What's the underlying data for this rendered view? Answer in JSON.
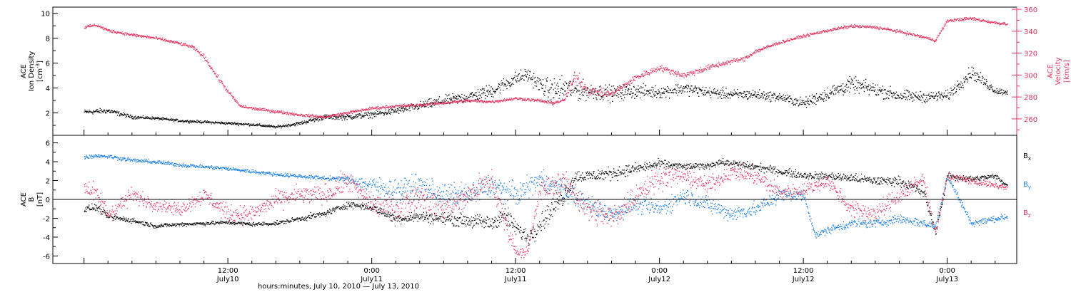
{
  "chart_data": [
    {
      "panel": "top",
      "type": "scatter",
      "ylabel_left": {
        "line1": "ACE",
        "line2": "Ion Density",
        "line3": "[cm",
        "sup": "-3",
        "close": "]"
      },
      "ylabel_right": {
        "line1": "ACE",
        "line2": "Velocity",
        "line3": "[km/s]"
      },
      "ylim_left": [
        0.2,
        10.5
      ],
      "ylim_right": [
        245,
        362
      ],
      "yticks_left": [
        "2",
        "4",
        "6",
        "8",
        "10"
      ],
      "yticks_left_values": [
        2,
        4,
        6,
        8,
        10
      ],
      "yticks_right": [
        "260",
        "280",
        "300",
        "320",
        "340",
        "360"
      ],
      "yticks_right_values": [
        260,
        280,
        300,
        320,
        340,
        360
      ],
      "series": [
        {
          "axis": "left",
          "color": "#000000",
          "x": [
            0,
            2,
            4,
            6,
            8,
            10,
            12,
            14,
            16,
            18,
            20,
            22,
            24,
            26,
            28,
            30,
            32,
            34,
            36,
            37,
            38,
            39,
            40,
            42,
            44,
            46,
            48,
            50,
            52,
            54,
            56,
            58,
            60,
            62,
            64,
            66,
            68,
            70,
            72,
            74,
            76,
            77
          ],
          "y": [
            2.1,
            2.2,
            1.7,
            1.6,
            1.4,
            1.3,
            1.2,
            1.1,
            0.9,
            1.2,
            1.7,
            1.7,
            1.9,
            2.2,
            2.6,
            3.0,
            3.3,
            3.8,
            4.8,
            5.1,
            4.3,
            3.8,
            4.0,
            3.8,
            3.6,
            3.8,
            3.7,
            4.0,
            3.7,
            3.5,
            3.5,
            3.3,
            2.8,
            3.6,
            4.3,
            3.9,
            3.4,
            3.3,
            3.4,
            5.3,
            3.8,
            3.7
          ],
          "spread": [
            0.3,
            0.3,
            0.2,
            0.15,
            0.15,
            0.15,
            0.15,
            0.15,
            0.15,
            0.2,
            0.3,
            0.3,
            0.35,
            0.4,
            0.5,
            0.6,
            0.7,
            0.8,
            0.8,
            0.8,
            0.9,
            1.4,
            1.6,
            1.0,
            0.9,
            0.8,
            0.7,
            0.7,
            0.6,
            0.6,
            0.6,
            0.5,
            0.6,
            0.8,
            0.9,
            0.8,
            0.7,
            0.6,
            0.6,
            0.8,
            0.4,
            0.3
          ],
          "n": 2300
        },
        {
          "axis": "right",
          "color": "#e8335e",
          "x": [
            0,
            1,
            2,
            4,
            6,
            8,
            9,
            10,
            11,
            12,
            13,
            14,
            16,
            18,
            20,
            22,
            24,
            26,
            28,
            30,
            32,
            34,
            36,
            38,
            39,
            40,
            41,
            42,
            44,
            46,
            48,
            50,
            52,
            54,
            55,
            56,
            58,
            59,
            60,
            62,
            64,
            66,
            68,
            70,
            71,
            72,
            74,
            76,
            77
          ],
          "y": [
            344,
            346,
            341,
            337,
            334,
            329,
            326,
            317,
            300,
            285,
            272,
            270,
            267,
            264,
            262,
            266,
            270,
            272,
            273,
            275,
            277,
            276,
            279,
            277,
            275,
            277,
            300,
            286,
            283,
            298,
            307,
            300,
            307,
            313,
            315,
            322,
            330,
            333,
            336,
            341,
            345,
            344,
            340,
            335,
            332,
            350,
            352,
            348,
            347
          ],
          "spread": [
            2,
            2,
            2,
            2,
            2,
            2,
            2,
            3,
            3,
            3,
            2,
            2,
            2,
            2,
            2,
            2,
            2,
            2,
            2,
            2,
            2,
            2,
            2,
            2,
            2,
            3,
            12,
            6,
            4,
            4,
            4,
            4,
            4,
            3,
            3,
            3,
            2,
            2,
            2,
            2,
            2,
            2,
            2,
            2,
            2,
            2,
            2,
            2,
            2
          ],
          "n": 2300
        }
      ]
    },
    {
      "panel": "bottom",
      "type": "scatter",
      "ylabel_left": {
        "line1": "ACE",
        "line2": "B",
        "line3": "[nT]"
      },
      "ylim": [
        -6.8,
        6.8
      ],
      "yticks": [
        "-6",
        "-4",
        "-2",
        "0",
        "2",
        "4",
        "6"
      ],
      "ytick_values": [
        -6,
        -4,
        -2,
        0,
        2,
        4,
        6
      ],
      "zero_line": true,
      "legend": [
        {
          "main": "B",
          "sub": "x",
          "color": "#000000"
        },
        {
          "main": "B",
          "sub": "y",
          "color": "#1a7fe8"
        },
        {
          "main": "B",
          "sub": "z",
          "color": "#e8335e"
        }
      ],
      "series": [
        {
          "name": "Bx",
          "color": "#000000",
          "x": [
            0,
            1,
            2,
            4,
            6,
            8,
            10,
            12,
            14,
            16,
            18,
            20,
            22,
            24,
            26,
            28,
            30,
            32,
            34,
            35,
            36,
            37,
            38,
            39,
            40,
            41,
            42,
            44,
            46,
            48,
            50,
            52,
            53,
            54,
            56,
            58,
            60,
            62,
            64,
            66,
            68,
            70,
            71,
            72,
            74,
            76,
            77
          ],
          "y": [
            -1.0,
            -0.8,
            -1.8,
            -2.2,
            -2.8,
            -2.6,
            -2.5,
            -2.4,
            -2.6,
            -2.5,
            -2.0,
            -1.5,
            -0.5,
            -0.8,
            -2.0,
            -1.8,
            -2.0,
            -2.2,
            -2.5,
            -1.5,
            -3.0,
            -4.0,
            -2.5,
            -1.0,
            0.5,
            2.5,
            2.5,
            2.8,
            3.3,
            3.8,
            3.5,
            3.6,
            4.0,
            3.8,
            3.5,
            3.0,
            2.6,
            2.5,
            2.3,
            2.0,
            2.0,
            0.8,
            -3.5,
            2.5,
            2.2,
            2.5,
            1.5
          ],
          "spread": [
            0.6,
            0.5,
            0.5,
            0.4,
            0.3,
            0.3,
            0.3,
            0.3,
            0.3,
            0.3,
            0.4,
            0.5,
            0.5,
            0.6,
            0.7,
            0.8,
            0.9,
            1.0,
            1.2,
            1.5,
            1.2,
            1.3,
            1.5,
            1.6,
            1.6,
            1.0,
            1.0,
            1.0,
            0.8,
            0.7,
            0.5,
            0.5,
            0.5,
            0.6,
            0.6,
            0.6,
            0.6,
            0.6,
            0.7,
            0.7,
            0.7,
            0.9,
            0.6,
            0.6,
            0.5,
            0.4,
            0.4
          ],
          "n": 2200
        },
        {
          "name": "By",
          "color": "#1a7fe8",
          "x": [
            0,
            1,
            2,
            4,
            6,
            8,
            10,
            12,
            14,
            16,
            18,
            20,
            22,
            24,
            26,
            28,
            30,
            32,
            34,
            36,
            38,
            40,
            42,
            44,
            46,
            48,
            50,
            52,
            54,
            56,
            58,
            60,
            61,
            62,
            64,
            66,
            68,
            70,
            71,
            72,
            74,
            76,
            77
          ],
          "y": [
            4.5,
            4.7,
            4.6,
            4.2,
            4.0,
            3.7,
            3.5,
            3.3,
            3.0,
            2.7,
            2.5,
            2.3,
            2.2,
            1.5,
            1.0,
            1.5,
            0.5,
            0.5,
            1.5,
            0.5,
            2.2,
            1.0,
            -0.5,
            -1.5,
            -0.5,
            -1.0,
            0.5,
            -0.5,
            -1.5,
            -1.0,
            0.5,
            0.5,
            -3.8,
            -3.2,
            -2.5,
            -2.5,
            -2.0,
            -2.5,
            -2.8,
            2.5,
            -2.5,
            -2.0,
            -1.8
          ],
          "spread": [
            0.3,
            0.3,
            0.3,
            0.3,
            0.3,
            0.3,
            0.3,
            0.3,
            0.3,
            0.3,
            0.3,
            0.3,
            0.4,
            1.5,
            1.8,
            1.8,
            1.8,
            1.8,
            1.7,
            1.8,
            1.5,
            1.7,
            1.5,
            1.3,
            1.3,
            1.3,
            1.3,
            1.2,
            1.2,
            1.2,
            1.0,
            0.8,
            0.4,
            0.6,
            0.7,
            0.7,
            0.7,
            0.7,
            0.4,
            0.5,
            0.5,
            0.5,
            0.5
          ],
          "n": 2200
        },
        {
          "name": "Bz",
          "color": "#e8335e",
          "x": [
            0,
            1,
            2,
            4,
            6,
            8,
            10,
            12,
            14,
            16,
            18,
            20,
            22,
            24,
            26,
            28,
            30,
            32,
            34,
            35,
            36,
            37,
            38,
            40,
            42,
            44,
            46,
            48,
            50,
            52,
            54,
            56,
            58,
            60,
            62,
            64,
            66,
            68,
            70,
            71,
            72,
            74,
            76,
            77
          ],
          "y": [
            1.5,
            0.5,
            -1.5,
            0.5,
            -0.5,
            -1.0,
            0.5,
            -1.5,
            -1.5,
            0.0,
            0.5,
            0.5,
            2.0,
            -0.5,
            -1.0,
            0.5,
            -1.0,
            0.5,
            2.0,
            -2.0,
            -5.5,
            -5.5,
            1.0,
            2.0,
            -1.0,
            -2.0,
            0.5,
            2.5,
            2.5,
            1.5,
            3.0,
            2.5,
            0.8,
            1.0,
            2.0,
            -1.0,
            -1.5,
            0.5,
            2.2,
            -3.5,
            2.5,
            2.0,
            1.5,
            1.3
          ],
          "spread": [
            1.5,
            1.5,
            1.5,
            1.2,
            1.0,
            1.0,
            1.2,
            1.3,
            1.3,
            1.3,
            1.5,
            1.5,
            1.8,
            1.8,
            2.0,
            2.0,
            2.0,
            2.0,
            2.2,
            1.8,
            0.8,
            0.8,
            1.8,
            1.5,
            2.0,
            2.2,
            2.0,
            1.8,
            1.2,
            1.2,
            1.2,
            1.3,
            1.2,
            1.0,
            1.0,
            1.5,
            1.5,
            1.5,
            1.0,
            0.4,
            0.6,
            0.5,
            0.5,
            0.5
          ],
          "n": 2200
        }
      ]
    }
  ],
  "x_axis": {
    "xlim_hours": [
      -2.6,
      77.8
    ],
    "ticks": [
      {
        "hours": 12,
        "top": "12:00",
        "bottom": "July10"
      },
      {
        "hours": 24,
        "top": "0:00",
        "bottom": "July11"
      },
      {
        "hours": 36,
        "top": "12:00",
        "bottom": "July11"
      },
      {
        "hours": 48,
        "top": "0:00",
        "bottom": "July12"
      },
      {
        "hours": 60,
        "top": "12:00",
        "bottom": "July12"
      },
      {
        "hours": 72,
        "top": "0:00",
        "bottom": "July13"
      }
    ],
    "title": "hours:minutes, July 10, 2010 — July 13, 2010"
  },
  "colors": {
    "density": "#000000",
    "velocity": "#e8335e",
    "bx": "#000000",
    "by": "#1a7fe8",
    "bz": "#e8335e"
  }
}
